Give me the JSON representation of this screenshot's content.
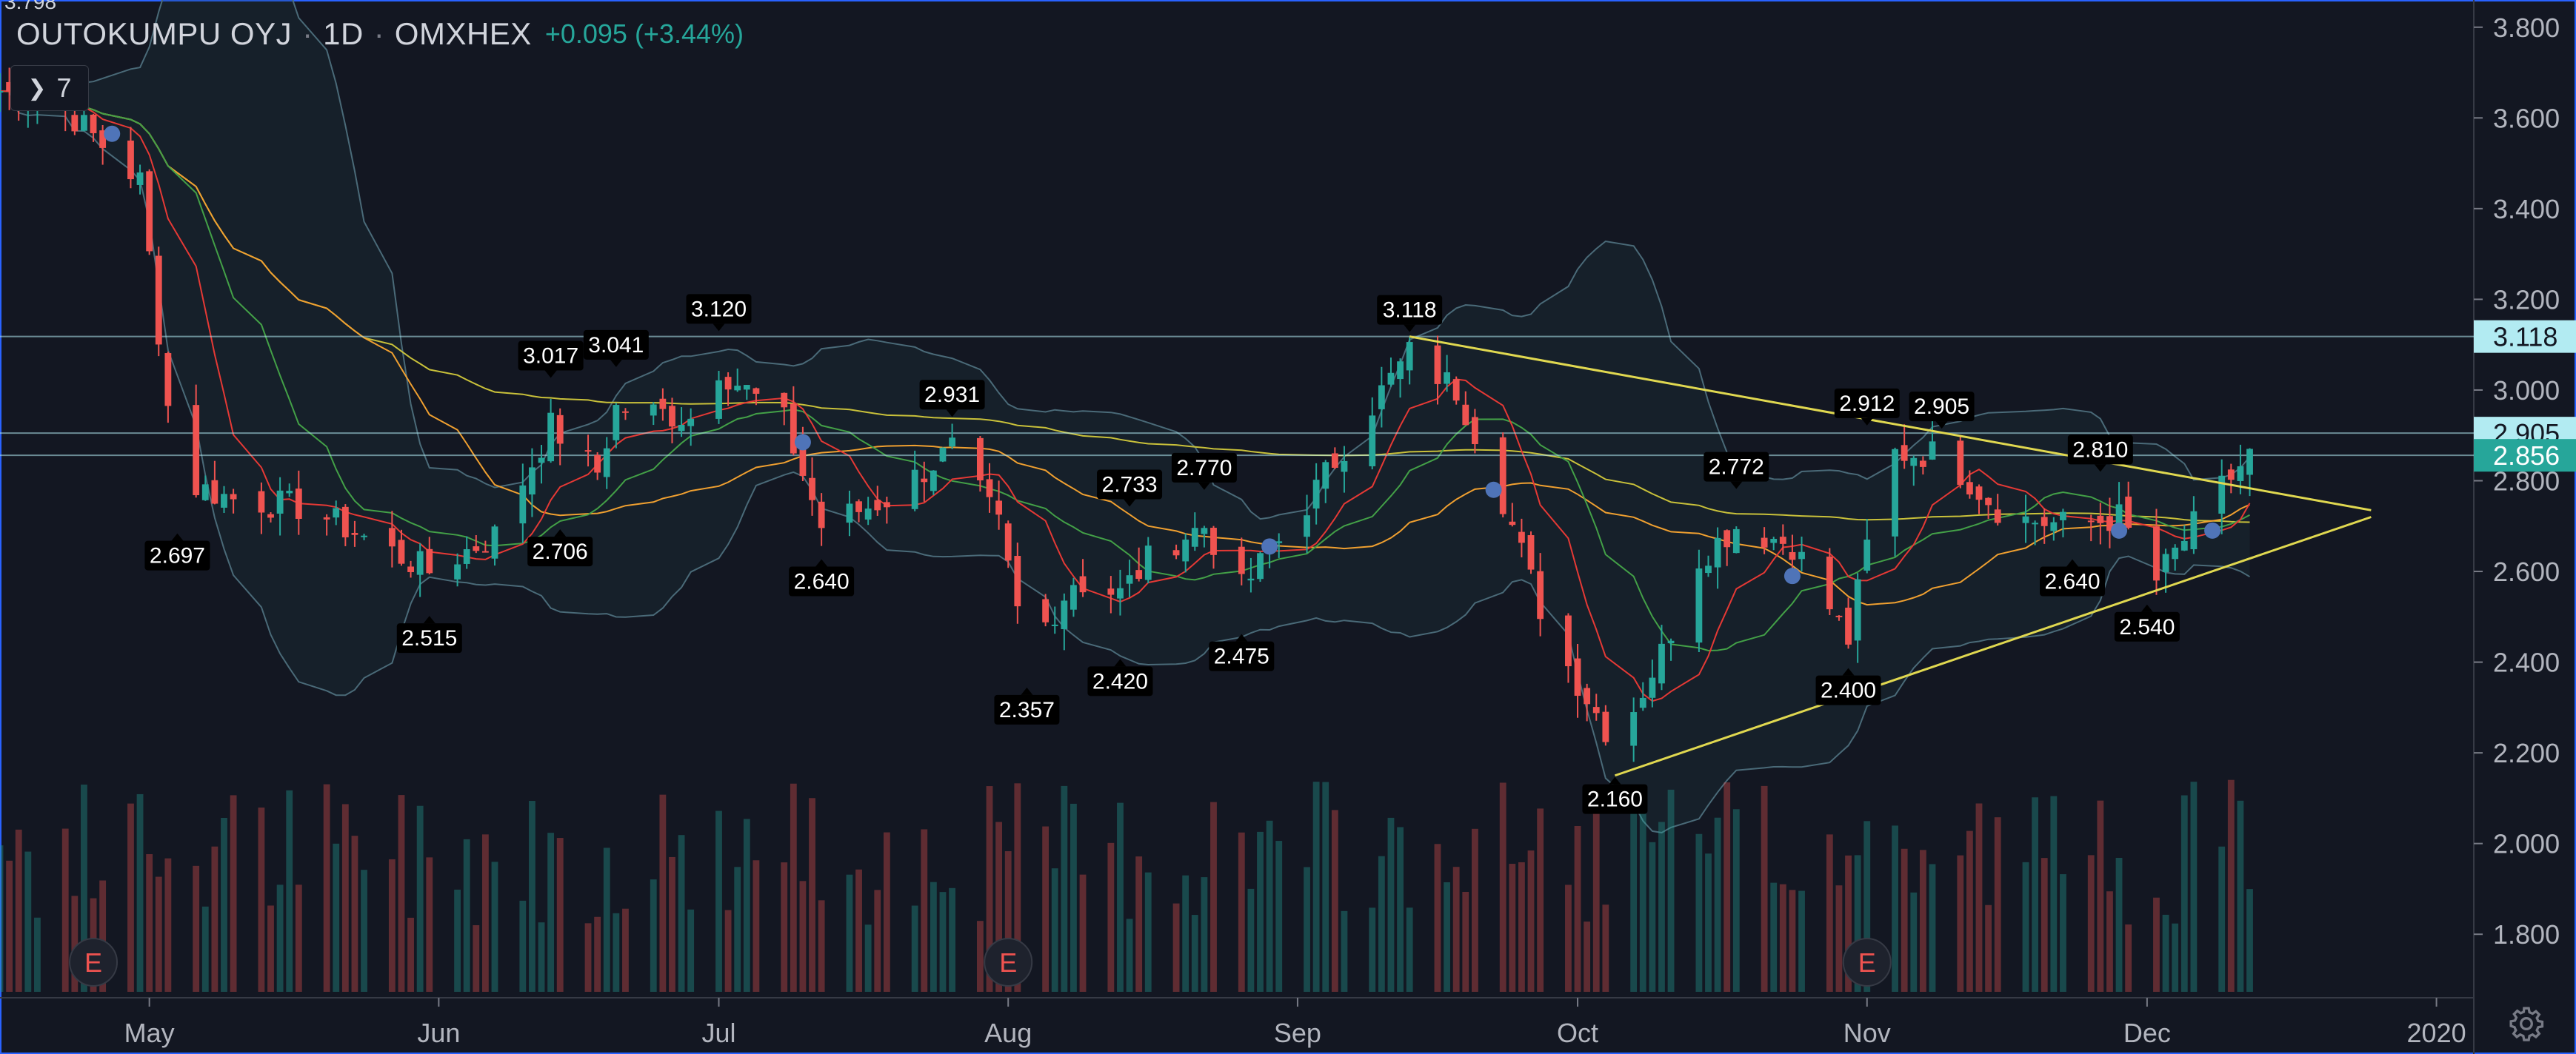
{
  "header": {
    "symbol": "OUTOKUMPU OYJ",
    "interval": "1D",
    "exchange": "OMXHEX",
    "change": "+0.095 (+3.44%)",
    "separator": "·"
  },
  "indicators_button": {
    "label": "7",
    "icon": "chevron-right-icon"
  },
  "settings_icon": "gear-icon",
  "colors": {
    "background": "#131722",
    "up": "#26a69a",
    "down": "#ef5350",
    "ma_red": "#e53935",
    "ma_green": "#43a047",
    "ma_orange": "#f0a030",
    "ma_yellow": "#c9c13a",
    "trendline": "#e0d850",
    "bollinger": "#4a6a78",
    "marker": "#4f74b8"
  },
  "chart_data": {
    "type": "candlestick",
    "ylim": [
      1.66,
      3.86
    ],
    "y_ticks": [
      "3.800",
      "3.600",
      "3.400",
      "3.200",
      "3.000",
      "2.800",
      "2.600",
      "2.400",
      "2.200",
      "2.000",
      "1.800"
    ],
    "y_tick_values": [
      3.8,
      3.6,
      3.4,
      3.2,
      3.0,
      2.8,
      2.6,
      2.4,
      2.2,
      2.0,
      1.8
    ],
    "x_labels": [
      {
        "label": "May",
        "date": "2019-05-01"
      },
      {
        "label": "Jun",
        "date": "2019-06-01"
      },
      {
        "label": "Jul",
        "date": "2019-07-01"
      },
      {
        "label": "Aug",
        "date": "2019-08-01"
      },
      {
        "label": "Sep",
        "date": "2019-09-01"
      },
      {
        "label": "Oct",
        "date": "2019-10-01"
      },
      {
        "label": "Nov",
        "date": "2019-11-01"
      },
      {
        "label": "Dec",
        "date": "2019-12-01"
      },
      {
        "label": "2020",
        "date": "2020-01-01"
      }
    ],
    "x_range": [
      "2019-04-15",
      "2020-01-05"
    ],
    "top_clipped_label": "3.798",
    "price_labels": [
      {
        "text": "3.118",
        "value": 3.118,
        "bg": "#b2ebf2",
        "fg": "#131722"
      },
      {
        "text": "2.905",
        "value": 2.905,
        "bg": "#b2ebf2",
        "fg": "#131722"
      },
      {
        "text": "2.856",
        "value": 2.856,
        "bg": "#26a69a",
        "fg": "#ffffff"
      }
    ],
    "horizontal_lines": [
      3.118,
      2.905,
      2.856
    ],
    "swing_labels": [
      {
        "text": "3.120",
        "date": "2019-07-01",
        "value": 3.12,
        "pos": "high"
      },
      {
        "text": "3.017",
        "date": "2019-06-13",
        "value": 3.017,
        "pos": "high"
      },
      {
        "text": "3.041",
        "date": "2019-06-20",
        "value": 3.041,
        "pos": "high"
      },
      {
        "text": "2.931",
        "date": "2019-07-26",
        "value": 2.931,
        "pos": "high"
      },
      {
        "text": "2.733",
        "date": "2019-08-14",
        "value": 2.733,
        "pos": "high"
      },
      {
        "text": "2.770",
        "date": "2019-08-22",
        "value": 2.77,
        "pos": "high"
      },
      {
        "text": "3.118",
        "date": "2019-09-13",
        "value": 3.118,
        "pos": "high"
      },
      {
        "text": "2.772",
        "date": "2019-10-18",
        "value": 2.772,
        "pos": "high"
      },
      {
        "text": "2.912",
        "date": "2019-11-01",
        "value": 2.912,
        "pos": "high"
      },
      {
        "text": "2.905",
        "date": "2019-11-09",
        "value": 2.905,
        "pos": "high"
      },
      {
        "text": "2.810",
        "date": "2019-11-26",
        "value": 2.81,
        "pos": "high"
      },
      {
        "text": "2.697",
        "date": "2019-05-04",
        "value": 2.697,
        "pos": "low"
      },
      {
        "text": "2.515",
        "date": "2019-05-31",
        "value": 2.515,
        "pos": "low"
      },
      {
        "text": "2.706",
        "date": "2019-06-14",
        "value": 2.706,
        "pos": "low"
      },
      {
        "text": "2.640",
        "date": "2019-07-12",
        "value": 2.64,
        "pos": "low"
      },
      {
        "text": "2.357",
        "date": "2019-08-03",
        "value": 2.357,
        "pos": "low"
      },
      {
        "text": "2.420",
        "date": "2019-08-13",
        "value": 2.42,
        "pos": "low"
      },
      {
        "text": "2.475",
        "date": "2019-08-26",
        "value": 2.475,
        "pos": "low"
      },
      {
        "text": "2.160",
        "date": "2019-10-05",
        "value": 2.16,
        "pos": "low"
      },
      {
        "text": "2.400",
        "date": "2019-10-30",
        "value": 2.4,
        "pos": "low"
      },
      {
        "text": "2.640",
        "date": "2019-11-23",
        "value": 2.64,
        "pos": "low"
      },
      {
        "text": "2.540",
        "date": "2019-12-01",
        "value": 2.54,
        "pos": "low"
      }
    ],
    "trendlines": [
      {
        "from": {
          "date": "2019-09-13",
          "value": 3.118
        },
        "to": {
          "date": "2019-12-25",
          "value": 2.735
        }
      },
      {
        "from": {
          "date": "2019-10-05",
          "value": 2.15
        },
        "to": {
          "date": "2019-12-25",
          "value": 2.72
        }
      }
    ],
    "earnings_markers": [
      {
        "label": "E",
        "date": "2019-04-25"
      },
      {
        "label": "E",
        "date": "2019-08-01"
      },
      {
        "label": "E",
        "date": "2019-11-01"
      }
    ],
    "blue_dots": [
      {
        "date": "2019-04-27",
        "value": 3.565
      },
      {
        "date": "2019-07-10",
        "value": 2.885
      },
      {
        "date": "2019-08-29",
        "value": 2.655
      },
      {
        "date": "2019-09-22",
        "value": 2.78
      },
      {
        "date": "2019-10-24",
        "value": 2.59
      },
      {
        "date": "2019-11-28",
        "value": 2.69
      },
      {
        "date": "2019-12-08",
        "value": 2.69
      }
    ],
    "waypoints": [
      {
        "date": "2019-04-15",
        "value": 3.66
      },
      {
        "date": "2019-04-22",
        "value": 3.62
      },
      {
        "date": "2019-04-30",
        "value": 3.46
      },
      {
        "date": "2019-05-04",
        "value": 2.8
      },
      {
        "date": "2019-05-10",
        "value": 2.76
      },
      {
        "date": "2019-05-18",
        "value": 2.74
      },
      {
        "date": "2019-05-31",
        "value": 2.6
      },
      {
        "date": "2019-06-07",
        "value": 2.68
      },
      {
        "date": "2019-06-13",
        "value": 2.92
      },
      {
        "date": "2019-06-18",
        "value": 2.82
      },
      {
        "date": "2019-06-20",
        "value": 2.96
      },
      {
        "date": "2019-06-28",
        "value": 2.94
      },
      {
        "date": "2019-07-01",
        "value": 3.05
      },
      {
        "date": "2019-07-08",
        "value": 2.93
      },
      {
        "date": "2019-07-12",
        "value": 2.7
      },
      {
        "date": "2019-07-19",
        "value": 2.76
      },
      {
        "date": "2019-07-26",
        "value": 2.87
      },
      {
        "date": "2019-07-31",
        "value": 2.7
      },
      {
        "date": "2019-08-03",
        "value": 2.42
      },
      {
        "date": "2019-08-08",
        "value": 2.58
      },
      {
        "date": "2019-08-13",
        "value": 2.55
      },
      {
        "date": "2019-08-17",
        "value": 2.65
      },
      {
        "date": "2019-08-22",
        "value": 2.7
      },
      {
        "date": "2019-08-26",
        "value": 2.56
      },
      {
        "date": "2019-09-02",
        "value": 2.75
      },
      {
        "date": "2019-09-08",
        "value": 2.94
      },
      {
        "date": "2019-09-13",
        "value": 3.08
      },
      {
        "date": "2019-09-18",
        "value": 3.0
      },
      {
        "date": "2019-09-22",
        "value": 2.82
      },
      {
        "date": "2019-09-28",
        "value": 2.46
      },
      {
        "date": "2019-10-05",
        "value": 2.22
      },
      {
        "date": "2019-10-10",
        "value": 2.42
      },
      {
        "date": "2019-10-14",
        "value": 2.63
      },
      {
        "date": "2019-10-18",
        "value": 2.7
      },
      {
        "date": "2019-10-24",
        "value": 2.66
      },
      {
        "date": "2019-10-30",
        "value": 2.45
      },
      {
        "date": "2019-11-03",
        "value": 2.86
      },
      {
        "date": "2019-11-09",
        "value": 2.86
      },
      {
        "date": "2019-11-16",
        "value": 2.72
      },
      {
        "date": "2019-11-23",
        "value": 2.7
      },
      {
        "date": "2019-11-28",
        "value": 2.72
      },
      {
        "date": "2019-12-02",
        "value": 2.58
      },
      {
        "date": "2019-12-08",
        "value": 2.76
      },
      {
        "date": "2019-12-12",
        "value": 2.856
      }
    ],
    "volume_scale": "relative",
    "series": [
      {
        "name": "",
        "kind": "candles"
      },
      {
        "name": "",
        "kind": "ma_fast"
      },
      {
        "name": "",
        "kind": "ma_mid"
      },
      {
        "name": "",
        "kind": "ma_slow"
      },
      {
        "name": "",
        "kind": "ma_long"
      },
      {
        "name": "",
        "kind": "bollinger"
      },
      {
        "name": "",
        "kind": "volume"
      }
    ]
  }
}
